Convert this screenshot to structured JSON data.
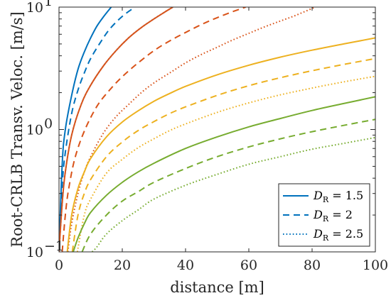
{
  "chart_data": {
    "type": "line",
    "xlabel": "distance [m]",
    "ylabel": "Root-CRLB Transv. Veloc. [m/s]",
    "xlim": [
      0,
      100
    ],
    "ylim": [
      0.1,
      10
    ],
    "yscale": "log",
    "grid": false,
    "legend_position": "bottom-right",
    "x_ticks": [
      {
        "value": 0,
        "label": "0"
      },
      {
        "value": 20,
        "label": "20"
      },
      {
        "value": 40,
        "label": "40"
      },
      {
        "value": 60,
        "label": "60"
      },
      {
        "value": 80,
        "label": "80"
      },
      {
        "value": 100,
        "label": "100"
      }
    ],
    "y_ticks": [
      {
        "value": 0.1,
        "base": "10",
        "exp": "−1"
      },
      {
        "value": 1,
        "base": "10",
        "exp": "0"
      },
      {
        "value": 10,
        "base": "10",
        "exp": "1"
      }
    ],
    "legend": [
      {
        "text": "D",
        "sub": "R",
        "value": "= 1.5",
        "dash": "solid"
      },
      {
        "text": "D",
        "sub": "R",
        "value": "= 2",
        "dash": "dashed"
      },
      {
        "text": "D",
        "sub": "R",
        "value": "= 2.5",
        "dash": "dotted"
      }
    ],
    "series": [
      {
        "color": "#0072bd",
        "dash": "solid",
        "x": [
          0,
          1,
          2,
          4,
          6,
          8,
          10,
          12,
          14,
          16.5
        ],
        "y": [
          0.1,
          0.52,
          1.0,
          1.9,
          3.1,
          4.3,
          5.6,
          7.0,
          8.3,
          10
        ]
      },
      {
        "color": "#0072bd",
        "dash": "dashed",
        "x": [
          0,
          1,
          2,
          4,
          6,
          8,
          10,
          13,
          16,
          20,
          24
        ],
        "y": [
          0.1,
          0.35,
          0.65,
          1.35,
          2.1,
          2.9,
          3.8,
          5.1,
          6.6,
          8.4,
          10
        ]
      },
      {
        "color": "#0072bd",
        "dash": "dotted",
        "x": [
          0,
          1,
          2,
          4,
          7,
          10,
          14,
          18,
          22,
          26,
          30,
          34,
          36
        ],
        "y": [
          0.1,
          0.25,
          0.45,
          0.9,
          1.6,
          2.3,
          3.3,
          4.4,
          5.6,
          6.8,
          8.0,
          9.3,
          10
        ]
      },
      {
        "color": "#d95319",
        "dash": "solid",
        "x": [
          0,
          1,
          2,
          4,
          7,
          10,
          14,
          18,
          22,
          26,
          30,
          34,
          36
        ],
        "y": [
          0.1,
          0.25,
          0.45,
          0.9,
          1.6,
          2.3,
          3.3,
          4.4,
          5.6,
          6.8,
          8.0,
          9.3,
          10
        ]
      },
      {
        "color": "#d95319",
        "dash": "dashed",
        "x": [
          1,
          2,
          3,
          5,
          8,
          12,
          16,
          20,
          25,
          30,
          35,
          40,
          45,
          50,
          55,
          59
        ],
        "y": [
          0.1,
          0.2,
          0.32,
          0.58,
          0.97,
          1.55,
          2.1,
          2.7,
          3.5,
          4.4,
          5.3,
          6.2,
          7.2,
          8.2,
          9.2,
          10
        ]
      },
      {
        "color": "#d95319",
        "dash": "dotted",
        "x": [
          2.8,
          4,
          6,
          8,
          10,
          14,
          18,
          22,
          26,
          30,
          35,
          40,
          45,
          50,
          55,
          60,
          65,
          70,
          75,
          81
        ],
        "y": [
          0.1,
          0.17,
          0.3,
          0.45,
          0.6,
          0.93,
          1.27,
          1.6,
          2.0,
          2.4,
          2.9,
          3.5,
          4.1,
          4.7,
          5.4,
          6.1,
          6.9,
          7.7,
          8.6,
          10
        ]
      },
      {
        "color": "#edb120",
        "dash": "solid",
        "x": [
          2.6,
          4,
          6,
          8,
          10,
          15,
          20,
          25,
          30,
          35,
          40,
          50,
          60,
          70,
          80,
          90,
          100
        ],
        "y": [
          0.1,
          0.2,
          0.33,
          0.45,
          0.58,
          0.87,
          1.15,
          1.42,
          1.7,
          1.97,
          2.25,
          2.8,
          3.35,
          3.9,
          4.45,
          5.0,
          5.6
        ]
      },
      {
        "color": "#edb120",
        "dash": "dashed",
        "x": [
          4.2,
          6,
          8,
          10,
          15,
          20,
          25,
          30,
          35,
          40,
          50,
          60,
          70,
          80,
          90,
          100
        ],
        "y": [
          0.1,
          0.2,
          0.3,
          0.39,
          0.6,
          0.79,
          0.98,
          1.16,
          1.35,
          1.53,
          1.9,
          2.28,
          2.65,
          3.02,
          3.4,
          3.8
        ]
      },
      {
        "color": "#edb120",
        "dash": "dotted",
        "x": [
          5.8,
          8,
          10,
          15,
          20,
          25,
          30,
          35,
          40,
          50,
          60,
          70,
          80,
          90,
          100
        ],
        "y": [
          0.1,
          0.2,
          0.27,
          0.44,
          0.57,
          0.71,
          0.84,
          0.98,
          1.11,
          1.38,
          1.65,
          1.92,
          2.18,
          2.45,
          2.72
        ]
      },
      {
        "color": "#77ac30",
        "dash": "solid",
        "x": [
          4.5,
          6,
          8,
          10,
          15,
          20,
          25,
          30,
          40,
          50,
          60,
          70,
          80,
          90,
          100
        ],
        "y": [
          0.1,
          0.13,
          0.17,
          0.21,
          0.29,
          0.37,
          0.45,
          0.53,
          0.7,
          0.87,
          1.05,
          1.23,
          1.43,
          1.63,
          1.85
        ]
      },
      {
        "color": "#77ac30",
        "dash": "dashed",
        "x": [
          7.3,
          10,
          15,
          20,
          25,
          30,
          40,
          50,
          60,
          70,
          80,
          90,
          100
        ],
        "y": [
          0.1,
          0.14,
          0.2,
          0.26,
          0.31,
          0.37,
          0.48,
          0.6,
          0.72,
          0.84,
          0.96,
          1.08,
          1.21
        ]
      },
      {
        "color": "#77ac30",
        "dash": "dotted",
        "x": [
          10.5,
          12,
          15,
          20,
          25,
          30,
          40,
          50,
          60,
          70,
          80,
          90,
          100
        ],
        "y": [
          0.1,
          0.11,
          0.14,
          0.18,
          0.22,
          0.27,
          0.35,
          0.43,
          0.52,
          0.6,
          0.69,
          0.77,
          0.86
        ]
      }
    ]
  }
}
